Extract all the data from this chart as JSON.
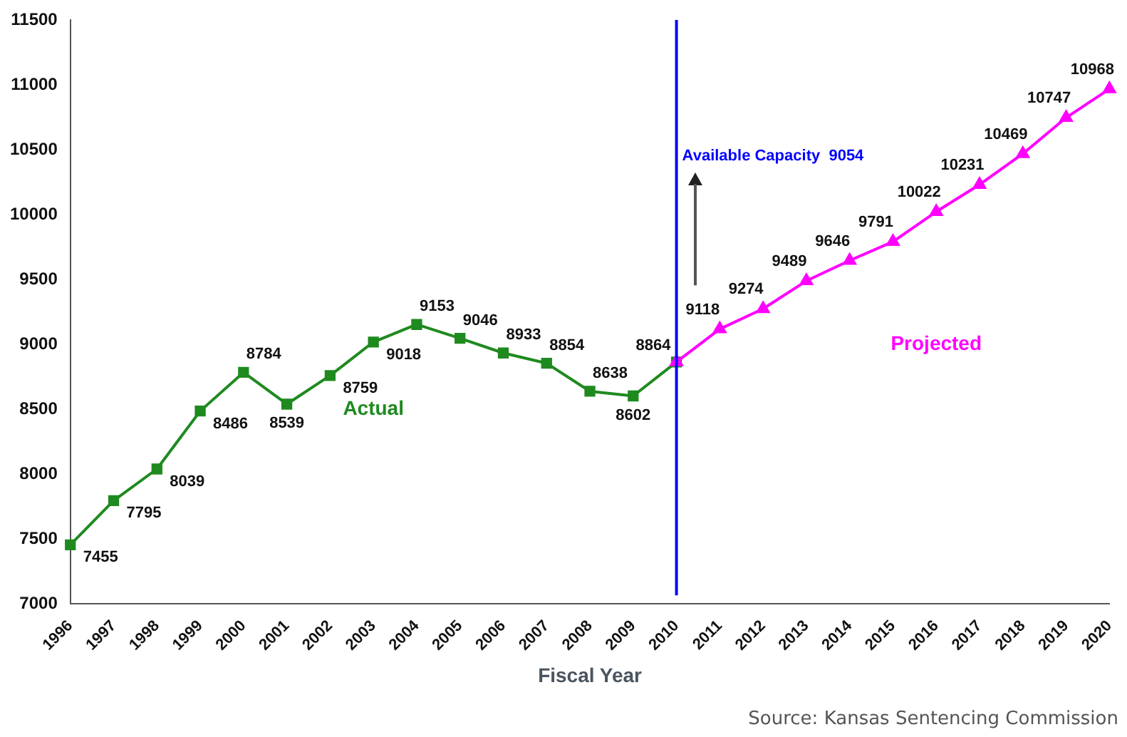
{
  "chart_data": {
    "type": "line",
    "xlabel": "Fiscal Year",
    "categories": [
      "1996",
      "1997",
      "1998",
      "1999",
      "2000",
      "2001",
      "2002",
      "2003",
      "2004",
      "2005",
      "2006",
      "2007",
      "2008",
      "2009",
      "2010",
      "2011",
      "2012",
      "2013",
      "2014",
      "2015",
      "2016",
      "2017",
      "2018",
      "2019",
      "2020"
    ],
    "series": [
      {
        "name": "Actual",
        "color": "#1f8a1f",
        "marker": "square",
        "values": [
          7455,
          7795,
          8039,
          8486,
          8784,
          8539,
          8759,
          9018,
          9153,
          9046,
          8933,
          8854,
          8638,
          8602,
          8864,
          null,
          null,
          null,
          null,
          null,
          null,
          null,
          null,
          null,
          null
        ],
        "value_labels": [
          "7455",
          "7795",
          "8039",
          "8486",
          "8784",
          "8539",
          "8759",
          "9018",
          "9153",
          "9046",
          "8933",
          "8854",
          "8638",
          "8602",
          "8864",
          null,
          null,
          null,
          null,
          null,
          null,
          null,
          null,
          null,
          null
        ]
      },
      {
        "name": "Projected",
        "color": "#ff00ff",
        "marker": "triangle",
        "values": [
          null,
          null,
          null,
          null,
          null,
          null,
          null,
          null,
          null,
          null,
          null,
          null,
          null,
          null,
          8864,
          9118,
          9274,
          9489,
          9646,
          9791,
          10022,
          10231,
          10469,
          10747,
          10968
        ],
        "value_labels": [
          null,
          null,
          null,
          null,
          null,
          null,
          null,
          null,
          null,
          null,
          null,
          null,
          null,
          null,
          null,
          "9118",
          "9274",
          "9489",
          "9646",
          "9791",
          "10022",
          "10231",
          "10469",
          "10747",
          "10968"
        ]
      }
    ],
    "ylim": [
      7000,
      11500
    ],
    "yticks": [
      7000,
      7500,
      8000,
      8500,
      9000,
      9500,
      10000,
      10500,
      11000,
      11500
    ],
    "grid": false,
    "legend": false,
    "line_style": "solid",
    "ref_lines": [
      {
        "axis": "x",
        "value": "2010",
        "label": "Available Capacity  9054",
        "color": "#0000ff"
      }
    ],
    "annotations": [
      "Source: Kansas Sentencing Commission"
    ]
  }
}
